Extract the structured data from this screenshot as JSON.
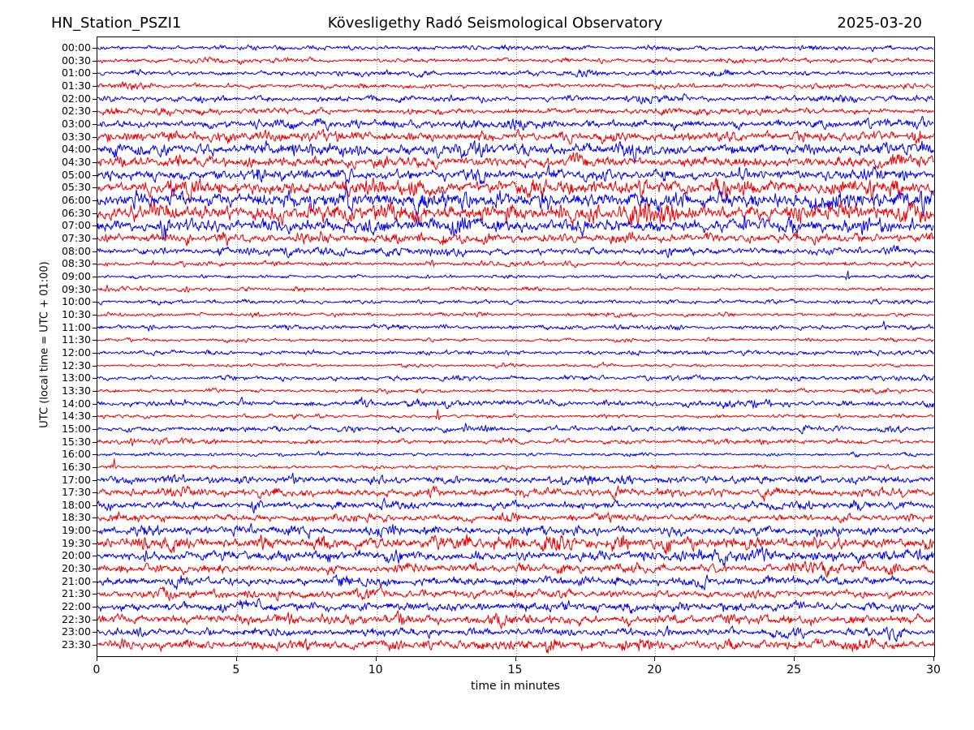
{
  "header": {
    "station": "HN_Station_PSZI1",
    "observatory": "Kövesligethy Radó Seismological Observatory",
    "date": "2025-03-20"
  },
  "axes": {
    "xlabel": "time in minutes",
    "ylabel": "UTC (local time = UTC + 01:00)",
    "x_ticks": [
      "0",
      "5",
      "10",
      "15",
      "20",
      "25",
      "30"
    ]
  },
  "chart_data": {
    "type": "line",
    "subtype": "helicorder-seismogram",
    "title": "Kövesligethy Radó Seismological Observatory",
    "station": "HN_Station_PSZI1",
    "date": "2025-03-20",
    "xlabel": "time in minutes",
    "ylabel": "UTC (local time = UTC + 01:00)",
    "x_range_minutes": [
      0,
      30
    ],
    "x_ticks": [
      0,
      5,
      10,
      15,
      20,
      25,
      30
    ],
    "minutes_per_line": 30,
    "grid": "vertical dotted gridlines every 5 minutes",
    "grid_color": "#8a8a8a",
    "trace_colors": {
      "hour": "#0000ee",
      "half_hour": "#ee0000"
    },
    "amplitude_note": "amp = relative noise amplitude in px; ev = transient events [minute, amplitude_px, width_px]",
    "rows": [
      {
        "label": "00:00",
        "color": "#0000ee",
        "amp": 1.1,
        "ev": []
      },
      {
        "label": "00:30",
        "color": "#ee0000",
        "amp": 1.2,
        "ev": []
      },
      {
        "label": "01:00",
        "color": "#0000ee",
        "amp": 1.3,
        "ev": []
      },
      {
        "label": "01:30",
        "color": "#ee0000",
        "amp": 1.3,
        "ev": []
      },
      {
        "label": "02:00",
        "color": "#0000ee",
        "amp": 1.5,
        "ev": []
      },
      {
        "label": "02:30",
        "color": "#ee0000",
        "amp": 1.5,
        "ev": []
      },
      {
        "label": "03:00",
        "color": "#0000ee",
        "amp": 2.2,
        "ev": []
      },
      {
        "label": "03:30",
        "color": "#ee0000",
        "amp": 2.6,
        "ev": [
          [
            1.1,
            5,
            4
          ]
        ]
      },
      {
        "label": "04:00",
        "color": "#0000ee",
        "amp": 3.1,
        "ev": [
          [
            9.3,
            5,
            5
          ],
          [
            25.5,
            5,
            4
          ]
        ]
      },
      {
        "label": "04:30",
        "color": "#ee0000",
        "amp": 2.7,
        "ev": []
      },
      {
        "label": "05:00",
        "color": "#0000ee",
        "amp": 3.1,
        "ev": [
          [
            27.5,
            5,
            4
          ]
        ]
      },
      {
        "label": "05:30",
        "color": "#ee0000",
        "amp": 3.8,
        "ev": [
          [
            10,
            5,
            7
          ]
        ]
      },
      {
        "label": "06:00",
        "color": "#0000ee",
        "amp": 4.2,
        "ev": [
          [
            27,
            5,
            5
          ]
        ]
      },
      {
        "label": "06:30",
        "color": "#ee0000",
        "amp": 4.2,
        "ev": [
          [
            10.3,
            6,
            5
          ],
          [
            16.6,
            6,
            4
          ],
          [
            19.9,
            5,
            5
          ]
        ]
      },
      {
        "label": "07:00",
        "color": "#0000ee",
        "amp": 3.5,
        "ev": [
          [
            2.4,
            5,
            4
          ],
          [
            12.1,
            6,
            2
          ]
        ]
      },
      {
        "label": "07:30",
        "color": "#ee0000",
        "amp": 2.5,
        "ev": [
          [
            2.5,
            4,
            5
          ],
          [
            8,
            4,
            4
          ]
        ]
      },
      {
        "label": "08:00",
        "color": "#0000ee",
        "amp": 1.8,
        "ev": [
          [
            5.5,
            3.5,
            10
          ],
          [
            12,
            3,
            12
          ]
        ]
      },
      {
        "label": "08:30",
        "color": "#ee0000",
        "amp": 1.1,
        "ev": [
          [
            2,
            2,
            3
          ],
          [
            12,
            5,
            1.8
          ]
        ]
      },
      {
        "label": "09:00",
        "color": "#0000ee",
        "amp": 0.85,
        "ev": [
          [
            23.7,
            2.5,
            1.5
          ],
          [
            26.9,
            7,
            1.5
          ]
        ]
      },
      {
        "label": "09:30",
        "color": "#ee0000",
        "amp": 1.0,
        "ev": [
          [
            0.35,
            4,
            2.5
          ],
          [
            1.55,
            3.5,
            2
          ],
          [
            3.2,
            4,
            3
          ],
          [
            28.1,
            2.5,
            1.5
          ]
        ]
      },
      {
        "label": "10:00",
        "color": "#0000ee",
        "amp": 1.0,
        "ev": [
          [
            2.35,
            3,
            1.5
          ],
          [
            26.5,
            2,
            3
          ]
        ]
      },
      {
        "label": "10:30",
        "color": "#ee0000",
        "amp": 1.0,
        "ev": []
      },
      {
        "label": "11:00",
        "color": "#0000ee",
        "amp": 1.1,
        "ev": [
          [
            1.9,
            3,
            4
          ],
          [
            28.2,
            3.5,
            1.5
          ]
        ]
      },
      {
        "label": "11:30",
        "color": "#ee0000",
        "amp": 0.9,
        "ev": [
          [
            25.5,
            2,
            4
          ]
        ]
      },
      {
        "label": "12:00",
        "color": "#0000ee",
        "amp": 1.1,
        "ev": [
          [
            27.2,
            2.5,
            5
          ]
        ]
      },
      {
        "label": "12:30",
        "color": "#ee0000",
        "amp": 0.8,
        "ev": []
      },
      {
        "label": "13:00",
        "color": "#0000ee",
        "amp": 1.2,
        "ev": [
          [
            28.8,
            2.5,
            4
          ]
        ]
      },
      {
        "label": "13:30",
        "color": "#ee0000",
        "amp": 0.9,
        "ev": []
      },
      {
        "label": "14:00",
        "color": "#0000ee",
        "amp": 1.6,
        "ev": [
          [
            22.8,
            2.5,
            2
          ]
        ]
      },
      {
        "label": "14:30",
        "color": "#ee0000",
        "amp": 0.9,
        "ev": [
          [
            12.2,
            9,
            1.3
          ],
          [
            26.6,
            4,
            1.3
          ]
        ]
      },
      {
        "label": "15:00",
        "color": "#0000ee",
        "amp": 1.4,
        "ev": [
          [
            13.2,
            4,
            3
          ]
        ]
      },
      {
        "label": "15:30",
        "color": "#ee0000",
        "amp": 1.2,
        "ev": [
          [
            1.2,
            3.5,
            4
          ]
        ]
      },
      {
        "label": "16:00",
        "color": "#0000ee",
        "amp": 0.9,
        "ev": []
      },
      {
        "label": "16:30",
        "color": "#ee0000",
        "amp": 0.9,
        "ev": [
          [
            0.6,
            10,
            1.2
          ]
        ]
      },
      {
        "label": "17:00",
        "color": "#0000ee",
        "amp": 2.0,
        "ev": [
          [
            7,
            4,
            5
          ]
        ]
      },
      {
        "label": "17:30",
        "color": "#ee0000",
        "amp": 2.2,
        "ev": []
      },
      {
        "label": "18:00",
        "color": "#0000ee",
        "amp": 2.0,
        "ev": []
      },
      {
        "label": "18:30",
        "color": "#ee0000",
        "amp": 1.9,
        "ev": []
      },
      {
        "label": "19:00",
        "color": "#0000ee",
        "amp": 2.3,
        "ev": [
          [
            26,
            4,
            7
          ]
        ]
      },
      {
        "label": "19:30",
        "color": "#ee0000",
        "amp": 3.2,
        "ev": []
      },
      {
        "label": "20:00",
        "color": "#0000ee",
        "amp": 2.7,
        "ev": [
          [
            1.75,
            8,
            1.6
          ]
        ]
      },
      {
        "label": "20:30",
        "color": "#ee0000",
        "amp": 2.3,
        "ev": [
          [
            7.5,
            4,
            5
          ]
        ]
      },
      {
        "label": "21:00",
        "color": "#0000ee",
        "amp": 2.3,
        "ev": []
      },
      {
        "label": "21:30",
        "color": "#ee0000",
        "amp": 2.1,
        "ev": []
      },
      {
        "label": "22:00",
        "color": "#0000ee",
        "amp": 2.4,
        "ev": [
          [
            21,
            4,
            6
          ]
        ]
      },
      {
        "label": "22:30",
        "color": "#ee0000",
        "amp": 2.4,
        "ev": []
      },
      {
        "label": "23:00",
        "color": "#0000ee",
        "amp": 2.1,
        "ev": [
          [
            16,
            3,
            4
          ]
        ]
      },
      {
        "label": "23:30",
        "color": "#ee0000",
        "amp": 2.6,
        "ev": [
          [
            1,
            4,
            5
          ],
          [
            16.5,
            3,
            4
          ]
        ]
      }
    ]
  }
}
